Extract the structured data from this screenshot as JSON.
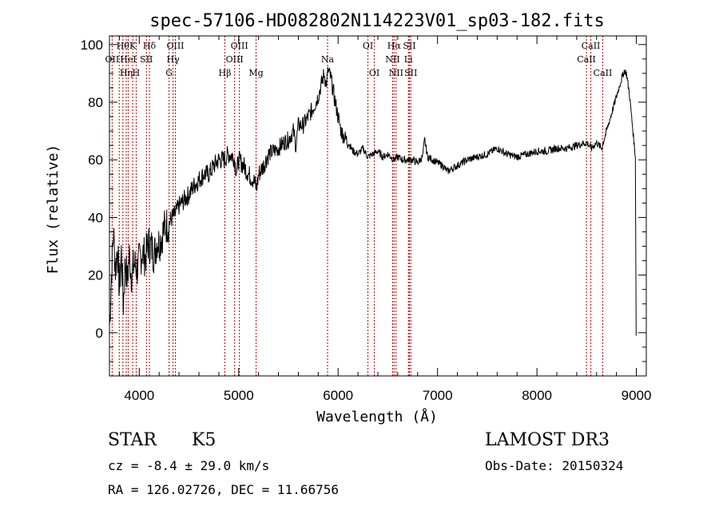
{
  "chart_data": {
    "type": "line",
    "title": "spec-57106-HD082802N114223V01_sp03-182.fits",
    "xlabel": "Wavelength (Å)",
    "ylabel": "Flux (relative)",
    "xlim": [
      3700,
      9100
    ],
    "ylim": [
      -15,
      103
    ],
    "xticks": [
      "4000",
      "5000",
      "6000",
      "7000",
      "8000",
      "9000"
    ],
    "yticks": [
      "0",
      "20",
      "40",
      "60",
      "80",
      "100"
    ],
    "grid": false,
    "series_color": "#000000",
    "line_marker_color": "#aa0000",
    "spectrum_points": [
      [
        3700,
        2
      ],
      [
        3720,
        20
      ],
      [
        3740,
        35
      ],
      [
        3760,
        22
      ],
      [
        3780,
        30
      ],
      [
        3800,
        15
      ],
      [
        3820,
        28
      ],
      [
        3840,
        10
      ],
      [
        3860,
        25
      ],
      [
        3880,
        18
      ],
      [
        3900,
        27
      ],
      [
        3920,
        20
      ],
      [
        3950,
        24
      ],
      [
        3980,
        22
      ],
      [
        4000,
        25
      ],
      [
        4030,
        28
      ],
      [
        4060,
        26
      ],
      [
        4090,
        31
      ],
      [
        4120,
        30
      ],
      [
        4150,
        27
      ],
      [
        4180,
        32
      ],
      [
        4200,
        31
      ],
      [
        4230,
        34
      ],
      [
        4260,
        37
      ],
      [
        4300,
        38
      ],
      [
        4330,
        40
      ],
      [
        4360,
        41
      ],
      [
        4400,
        44
      ],
      [
        4450,
        46
      ],
      [
        4500,
        48
      ],
      [
        4550,
        51
      ],
      [
        4600,
        53
      ],
      [
        4650,
        55
      ],
      [
        4700,
        55
      ],
      [
        4750,
        58
      ],
      [
        4800,
        60
      ],
      [
        4850,
        60
      ],
      [
        4900,
        62
      ],
      [
        4950,
        61
      ],
      [
        4980,
        56
      ],
      [
        5000,
        60
      ],
      [
        5050,
        58
      ],
      [
        5100,
        55
      ],
      [
        5150,
        53
      ],
      [
        5180,
        50
      ],
      [
        5200,
        55
      ],
      [
        5250,
        58
      ],
      [
        5300,
        62
      ],
      [
        5350,
        63
      ],
      [
        5400,
        64
      ],
      [
        5450,
        66
      ],
      [
        5500,
        67
      ],
      [
        5550,
        70
      ],
      [
        5575,
        65
      ],
      [
        5600,
        72
      ],
      [
        5650,
        72
      ],
      [
        5700,
        75
      ],
      [
        5750,
        78
      ],
      [
        5800,
        82
      ],
      [
        5830,
        86
      ],
      [
        5860,
        90
      ],
      [
        5880,
        86
      ],
      [
        5900,
        91
      ],
      [
        5930,
        88
      ],
      [
        5960,
        82
      ],
      [
        6000,
        75
      ],
      [
        6030,
        70
      ],
      [
        6060,
        68
      ],
      [
        6100,
        66
      ],
      [
        6150,
        63
      ],
      [
        6200,
        62
      ],
      [
        6250,
        64
      ],
      [
        6300,
        61
      ],
      [
        6350,
        62
      ],
      [
        6400,
        63
      ],
      [
        6450,
        61
      ],
      [
        6500,
        62
      ],
      [
        6562,
        60
      ],
      [
        6600,
        61
      ],
      [
        6650,
        60
      ],
      [
        6700,
        60
      ],
      [
        6750,
        60
      ],
      [
        6800,
        59
      ],
      [
        6850,
        61
      ],
      [
        6870,
        67
      ],
      [
        6900,
        61
      ],
      [
        6950,
        60
      ],
      [
        7000,
        59
      ],
      [
        7050,
        58
      ],
      [
        7100,
        56
      ],
      [
        7150,
        57
      ],
      [
        7200,
        58
      ],
      [
        7300,
        60
      ],
      [
        7400,
        61
      ],
      [
        7500,
        62
      ],
      [
        7600,
        64
      ],
      [
        7700,
        62
      ],
      [
        7800,
        61
      ],
      [
        7900,
        62
      ],
      [
        8000,
        63
      ],
      [
        8100,
        63
      ],
      [
        8200,
        64
      ],
      [
        8300,
        64
      ],
      [
        8400,
        65
      ],
      [
        8500,
        66
      ],
      [
        8550,
        64
      ],
      [
        8600,
        66
      ],
      [
        8650,
        64
      ],
      [
        8700,
        70
      ],
      [
        8750,
        76
      ],
      [
        8800,
        82
      ],
      [
        8850,
        88
      ],
      [
        8880,
        91
      ],
      [
        8900,
        90
      ],
      [
        8930,
        83
      ],
      [
        8960,
        72
      ],
      [
        8990,
        61
      ]
    ],
    "line_ids": [
      {
        "wave": 3727,
        "labels": [
          {
            "text": "OII",
            "row": 1
          }
        ]
      },
      {
        "wave": 3798,
        "labels": []
      },
      {
        "wave": 3835,
        "labels": [
          {
            "text": "Hθ",
            "row": 0
          }
        ]
      },
      {
        "wave": 3869,
        "labels": [
          {
            "text": "Hη",
            "row": 2
          }
        ]
      },
      {
        "wave": 3889,
        "labels": [
          {
            "text": "HeI",
            "row": 1
          }
        ]
      },
      {
        "wave": 3934,
        "labels": [
          {
            "text": "K",
            "row": 0
          }
        ]
      },
      {
        "wave": 3969,
        "labels": [
          {
            "text": "H",
            "row": 2
          }
        ]
      },
      {
        "wave": 4072,
        "labels": [
          {
            "text": "SII",
            "row": 1
          }
        ]
      },
      {
        "wave": 4102,
        "labels": [
          {
            "text": "Hδ",
            "row": 0
          }
        ]
      },
      {
        "wave": 4300,
        "labels": [
          {
            "text": "G",
            "row": 2
          }
        ]
      },
      {
        "wave": 4340,
        "labels": [
          {
            "text": "Hγ",
            "row": 1
          }
        ]
      },
      {
        "wave": 4363,
        "labels": [
          {
            "text": "OIII",
            "row": 0
          }
        ]
      },
      {
        "wave": 4861,
        "labels": [
          {
            "text": "Hβ",
            "row": 2
          }
        ]
      },
      {
        "wave": 4959,
        "labels": [
          {
            "text": "OIII",
            "row": 1
          }
        ]
      },
      {
        "wave": 5007,
        "labels": [
          {
            "text": "OIII",
            "row": 0
          }
        ]
      },
      {
        "wave": 5175,
        "labels": [
          {
            "text": "Mg",
            "row": 2
          }
        ]
      },
      {
        "wave": 5894,
        "labels": [
          {
            "text": "Na",
            "row": 1
          }
        ]
      },
      {
        "wave": 6300,
        "labels": [
          {
            "text": "OI",
            "row": 0
          }
        ]
      },
      {
        "wave": 6364,
        "labels": [
          {
            "text": "OI",
            "row": 2
          }
        ]
      },
      {
        "wave": 6548,
        "labels": [
          {
            "text": "NII",
            "row": 1
          }
        ]
      },
      {
        "wave": 6563,
        "labels": [
          {
            "text": "Hα",
            "row": 0
          }
        ]
      },
      {
        "wave": 6583,
        "labels": [
          {
            "text": "NII",
            "row": 2
          }
        ]
      },
      {
        "wave": 6707,
        "labels": [
          {
            "text": "Li",
            "row": 1
          }
        ]
      },
      {
        "wave": 6717,
        "labels": [
          {
            "text": "SII",
            "row": 0
          }
        ]
      },
      {
        "wave": 6731,
        "labels": [
          {
            "text": "SII",
            "row": 2
          }
        ]
      },
      {
        "wave": 8498,
        "labels": [
          {
            "text": "CaII",
            "row": 1
          }
        ]
      },
      {
        "wave": 8542,
        "labels": [
          {
            "text": "CaII",
            "row": 0
          }
        ]
      },
      {
        "wave": 8662,
        "labels": [
          {
            "text": "CaII",
            "row": 2
          }
        ]
      }
    ]
  },
  "info": {
    "object_class": "STAR",
    "subclass": "K5",
    "survey": "LAMOST DR3",
    "redshift": "cz = -8.4 ± 29.0 km/s",
    "obs_date": "Obs-Date: 20150324",
    "coords": "RA = 126.02726, DEC =  11.66756"
  }
}
